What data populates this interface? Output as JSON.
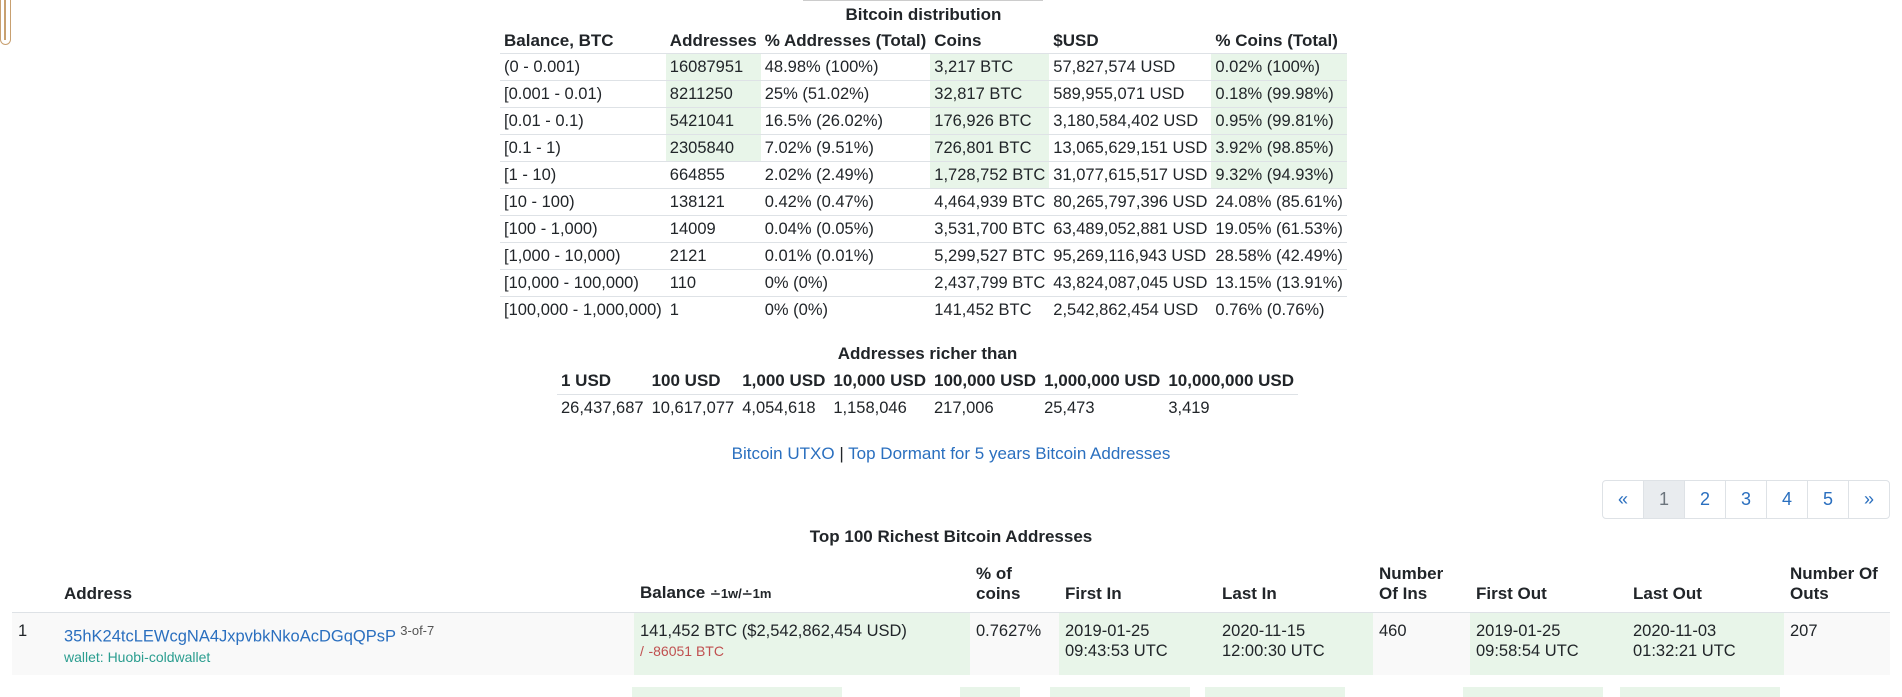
{
  "distribution": {
    "title": "Bitcoin distribution",
    "headers": [
      "Balance, BTC",
      "Addresses",
      "% Addresses (Total)",
      "Coins",
      "$USD",
      "% Coins (Total)"
    ],
    "rows": [
      [
        "(0 - 0.001)",
        "16087951",
        "48.98% (100%)",
        "3,217 BTC",
        "57,827,574 USD",
        "0.02% (100%)"
      ],
      [
        "[0.001 - 0.01)",
        "8211250",
        "25% (51.02%)",
        "32,817 BTC",
        "589,955,071 USD",
        "0.18% (99.98%)"
      ],
      [
        "[0.01 - 0.1)",
        "5421041",
        "16.5% (26.02%)",
        "176,926 BTC",
        "3,180,584,402 USD",
        "0.95% (99.81%)"
      ],
      [
        "[0.1 - 1)",
        "2305840",
        "7.02% (9.51%)",
        "726,801 BTC",
        "13,065,629,151 USD",
        "3.92% (98.85%)"
      ],
      [
        "[1 - 10)",
        "664855",
        "2.02% (2.49%)",
        "1,728,752 BTC",
        "31,077,615,517 USD",
        "9.32% (94.93%)"
      ],
      [
        "[10 - 100)",
        "138121",
        "0.42% (0.47%)",
        "4,464,939 BTC",
        "80,265,797,396 USD",
        "24.08% (85.61%)"
      ],
      [
        "[100 - 1,000)",
        "14009",
        "0.04% (0.05%)",
        "3,531,700 BTC",
        "63,489,052,881 USD",
        "19.05% (61.53%)"
      ],
      [
        "[1,000 - 10,000)",
        "2121",
        "0.01% (0.01%)",
        "5,299,527 BTC",
        "95,269,116,943 USD",
        "28.58% (42.49%)"
      ],
      [
        "[10,000 - 100,000)",
        "110",
        "0% (0%)",
        "2,437,799 BTC",
        "43,824,087,045 USD",
        "13.15% (13.91%)"
      ],
      [
        "[100,000 - 1,000,000)",
        "1",
        "0% (0%)",
        "141,452 BTC",
        "2,542,862,454 USD",
        "0.76% (0.76%)"
      ]
    ]
  },
  "richer": {
    "title": "Addresses richer than",
    "headers": [
      "1 USD",
      "100 USD",
      "1,000 USD",
      "10,000 USD",
      "100,000 USD",
      "1,000,000 USD",
      "10,000,000 USD"
    ],
    "values": [
      "26,437,687",
      "10,617,077",
      "4,054,618",
      "1,158,046",
      "217,006",
      "25,473",
      "3,419"
    ]
  },
  "links": {
    "utxo": "Bitcoin UTXO",
    "separator": "|",
    "dormant": "Top Dormant for 5 years Bitcoin Addresses"
  },
  "pagination": {
    "prev": "«",
    "pages": [
      "1",
      "2",
      "3",
      "4",
      "5"
    ],
    "next": "»",
    "active": "1"
  },
  "top": {
    "title": "Top 100 Richest Bitcoin Addresses",
    "headers": {
      "num": "",
      "address": "Address",
      "balance": "Balance",
      "balance_sub": "∸1w/∸1m",
      "pct_line1": "% of",
      "pct_line2": "coins",
      "first_in": "First In",
      "last_in": "Last In",
      "num_ins_line1": "Number",
      "num_ins_line2": "Of Ins",
      "first_out": "First Out",
      "last_out": "Last Out",
      "num_outs_line1": "Number Of",
      "num_outs_line2": "Outs"
    },
    "rows": [
      {
        "rank": "1",
        "address": "35hK24tcLEWcgNA4JxpvbkNkoAcDGqQPsP",
        "multisig": "3-of-7",
        "wallet": "wallet: Huobi-coldwallet",
        "balance": "141,452 BTC ($2,542,862,454 USD)",
        "change_prefix": "/",
        "change": "-86051 BTC",
        "pct": "0.7627%",
        "first_in_date": "2019-01-25",
        "first_in_time": "09:43:53 UTC",
        "last_in_date": "2020-11-15",
        "last_in_time": "12:00:30 UTC",
        "num_ins": "460",
        "first_out_date": "2019-01-25",
        "first_out_time": "09:58:54 UTC",
        "last_out_date": "2020-11-03",
        "last_out_time": "01:32:21 UTC",
        "num_outs": "207"
      }
    ]
  }
}
